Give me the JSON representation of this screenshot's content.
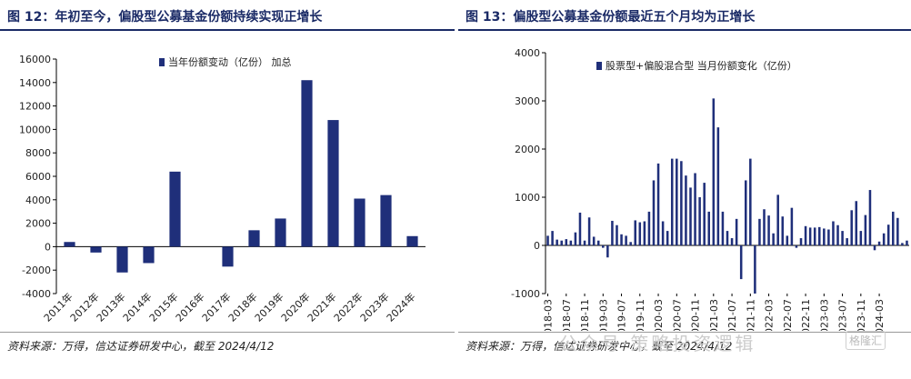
{
  "left": {
    "title": "图 12：年初至今，偏股型公募基金份额持续实现正增长",
    "source": "资料来源：万得，信达证券研发中心，截至 2024/4/12"
  },
  "right": {
    "title": "图 13：偏股型公募基金份额最近五个月均为正增长",
    "source": "资料来源：万得，信达证券研发中心，截至 2024/4/12"
  },
  "watermark": "公众号·策略投资逻辑",
  "logo_text": "格隆汇",
  "colors": {
    "bar": "#1f2f7a",
    "title": "#1a2a66"
  },
  "chart_data": [
    {
      "type": "bar",
      "title": "",
      "xlabel": "",
      "ylabel": "",
      "ylim": [
        -4000,
        16000
      ],
      "yticks": [
        -4000,
        -2000,
        0,
        2000,
        4000,
        6000,
        8000,
        10000,
        12000,
        14000,
        16000
      ],
      "grid": false,
      "legend_position": "top-center",
      "categories": [
        "2011年",
        "2012年",
        "2013年",
        "2014年",
        "2015年",
        "2016年",
        "2017年",
        "2018年",
        "2019年",
        "2020年",
        "2021年",
        "2022年",
        "2023年",
        "2024年"
      ],
      "series": [
        {
          "name": "当年份额变动（亿份）  加总",
          "values": [
            400,
            -500,
            -2200,
            -1400,
            6400,
            0,
            -1700,
            1400,
            2400,
            14200,
            10800,
            4100,
            4400,
            900
          ]
        }
      ]
    },
    {
      "type": "bar",
      "title": "",
      "xlabel": "",
      "ylabel": "",
      "ylim": [
        -1000,
        4000
      ],
      "yticks": [
        -1000,
        0,
        1000,
        2000,
        3000,
        4000
      ],
      "grid": false,
      "legend_position": "top-center",
      "tick_labels": [
        "2018-03",
        "2018-07",
        "2018-11",
        "2019-03",
        "2019-07",
        "2019-11",
        "2020-03",
        "2020-07",
        "2020-11",
        "2021-03",
        "2021-07",
        "2021-11",
        "2022-03",
        "2022-07",
        "2022-11",
        "2023-03",
        "2023-07",
        "2023-11",
        "2024-03"
      ],
      "series": [
        {
          "name": "股票型+偏股混合型  当月份额变化（亿份）",
          "values": [
            200,
            300,
            120,
            100,
            130,
            100,
            270,
            680,
            100,
            580,
            180,
            100,
            -50,
            -250,
            510,
            420,
            230,
            200,
            70,
            520,
            480,
            500,
            700,
            1350,
            1700,
            500,
            300,
            1800,
            1800,
            1750,
            1450,
            1200,
            1500,
            1000,
            1300,
            700,
            3050,
            2450,
            700,
            300,
            150,
            550,
            -700,
            1350,
            1800,
            -1000,
            550,
            750,
            620,
            250,
            1050,
            600,
            200,
            780,
            -50,
            150,
            400,
            370,
            370,
            380,
            350,
            330,
            500,
            420,
            300,
            150,
            730,
            920,
            300,
            630,
            1150,
            -100,
            80,
            250,
            430,
            700,
            570,
            50,
            100
          ]
        }
      ]
    }
  ]
}
